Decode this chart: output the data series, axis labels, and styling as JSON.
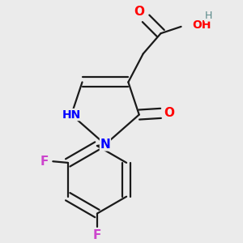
{
  "background_color": "#ebebeb",
  "bond_color": "#1a1a1a",
  "atom_colors": {
    "O": "#ff0000",
    "N": "#0000ff",
    "F": "#cc44cc",
    "H": "#5a8a8a",
    "C": "#1a1a1a"
  },
  "figsize": [
    3.0,
    3.0
  ],
  "dpi": 100
}
